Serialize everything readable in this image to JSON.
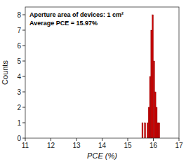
{
  "chart_data": {
    "type": "histogram",
    "xlabel": "PCE (%)",
    "ylabel": "Counts",
    "bins": [
      15.5,
      15.55,
      15.6,
      15.65,
      15.7,
      15.75,
      15.8,
      15.85,
      15.9,
      15.95,
      16.0,
      16.05,
      16.1,
      16.15,
      16.2,
      16.25,
      16.3
    ],
    "values": [
      0,
      1,
      0,
      1,
      0,
      1,
      2,
      4,
      7,
      8,
      5,
      3,
      2,
      1,
      1,
      0
    ],
    "color": "#cc0000",
    "xlim": [
      11,
      17
    ],
    "ylim": [
      0,
      8.5
    ],
    "xticks": [
      11,
      12,
      13,
      14,
      15,
      16,
      17
    ],
    "yticks": [
      0,
      1,
      2,
      3,
      4,
      5,
      6,
      7,
      8
    ],
    "grid": false,
    "annotations": [
      "Aperture area of devices: 1 cm²",
      "Average PCE = 15.97%"
    ]
  }
}
